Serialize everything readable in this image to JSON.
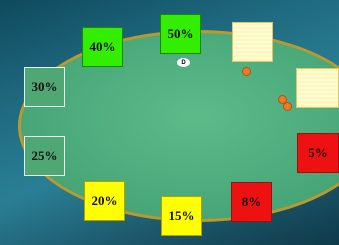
{
  "seats": [
    {
      "label": "40%"
    },
    {
      "label": "50%"
    },
    {
      "label": "30%"
    },
    {
      "label": "25%"
    },
    {
      "label": "5%"
    },
    {
      "label": "8%"
    },
    {
      "label": "15%"
    },
    {
      "label": "20%"
    }
  ],
  "dealer": "D"
}
